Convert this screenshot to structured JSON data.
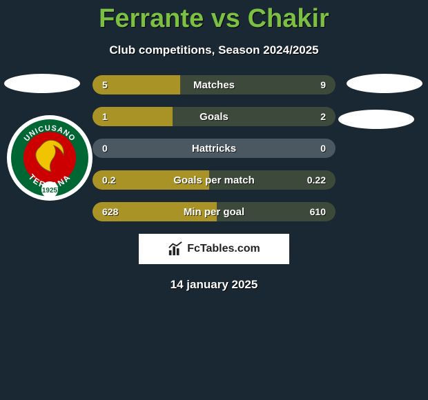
{
  "title": "Ferrante vs Chakir",
  "subtitle": "Club competitions, Season 2024/2025",
  "date": "14 january 2025",
  "brand": "FcTables.com",
  "colors": {
    "left_fill": "#a99326",
    "right_fill": "#3d4a3b",
    "neutral_fill": "#4b5862",
    "title_color": "#7bc043",
    "background": "#1a2833"
  },
  "crest": {
    "top_text": "UNICUSANO",
    "mid_text": "TERNANA",
    "year": "1925",
    "ring_outer": "#ffffff",
    "ring_inner": "#006633",
    "center_bg": "#cc0000",
    "dragon": "#f0c400"
  },
  "bars": [
    {
      "label": "Matches",
      "left_val": "5",
      "right_val": "9",
      "left_pct": 36,
      "type": "split"
    },
    {
      "label": "Goals",
      "left_val": "1",
      "right_val": "2",
      "left_pct": 33,
      "type": "split"
    },
    {
      "label": "Hattricks",
      "left_val": "0",
      "right_val": "0",
      "left_pct": 0,
      "type": "neutral"
    },
    {
      "label": "Goals per match",
      "left_val": "0.2",
      "right_val": "0.22",
      "left_pct": 48,
      "type": "split"
    },
    {
      "label": "Min per goal",
      "left_val": "628",
      "right_val": "610",
      "left_pct": 51,
      "type": "split"
    }
  ]
}
